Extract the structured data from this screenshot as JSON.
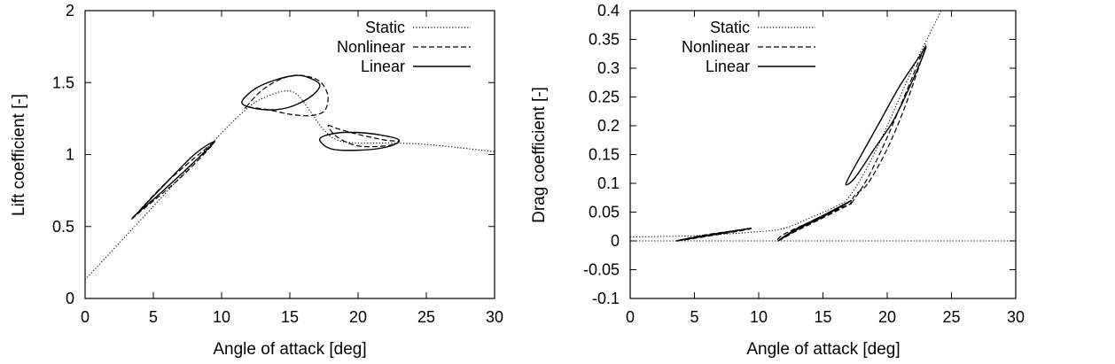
{
  "chart_data": [
    {
      "id": "lift",
      "type": "line",
      "title": "",
      "xlabel": "Angle of attack [deg]",
      "ylabel": "Lift coefficient [-]",
      "xlim": [
        0,
        30
      ],
      "ylim": [
        0,
        2
      ],
      "xticks": [
        0,
        5,
        10,
        15,
        20,
        25,
        30
      ],
      "yticks": [
        0,
        0.5,
        1,
        1.5,
        2
      ],
      "ytick_labels": [
        "0",
        "0.5",
        "1",
        "1.5",
        "2"
      ],
      "grid": false,
      "legend_position": "top-right",
      "series": [
        {
          "name": "Static",
          "style": "dotted",
          "x": [
            0,
            5,
            10,
            12,
            13,
            14.5,
            15.5,
            16.5,
            17.5,
            18.5,
            20,
            22,
            25,
            30
          ],
          "y": [
            0.13,
            0.64,
            1.15,
            1.33,
            1.39,
            1.44,
            1.42,
            1.3,
            1.17,
            1.1,
            1.08,
            1.08,
            1.07,
            1.02
          ]
        },
        {
          "name": "Nonlinear",
          "style": "dashed",
          "loops": [
            {
              "x": [
                3.6,
                6,
                9.4,
                7,
                4,
                3.6
              ],
              "y": [
                0.57,
                0.81,
                1.08,
                0.84,
                0.6,
                0.57
              ]
            },
            {
              "x": [
                11.8,
                13,
                14.5,
                15.8,
                17,
                17.6,
                17.8,
                17.5,
                16.5,
                15,
                13.5,
                12,
                11.8
              ],
              "y": [
                1.33,
                1.45,
                1.53,
                1.55,
                1.52,
                1.46,
                1.38,
                1.3,
                1.27,
                1.28,
                1.31,
                1.33,
                1.33
              ]
            },
            {
              "x": [
                17.8,
                18.5,
                20,
                22,
                23,
                22,
                20,
                18.5,
                17.8
              ],
              "y": [
                1.2,
                1.18,
                1.14,
                1.1,
                1.09,
                1.06,
                1.06,
                1.12,
                1.2
              ]
            }
          ]
        },
        {
          "name": "Linear",
          "style": "solid",
          "loops": [
            {
              "x": [
                3.6,
                5.5,
                8,
                9.5,
                8,
                5.5,
                3.8,
                3.6
              ],
              "y": [
                0.57,
                0.76,
                1.0,
                1.09,
                0.95,
                0.73,
                0.59,
                0.57
              ]
            },
            {
              "x": [
                11.5,
                12.5,
                14,
                15.5,
                16.5,
                17.2,
                16.5,
                15,
                13.5,
                12,
                11.5
              ],
              "y": [
                1.37,
                1.46,
                1.52,
                1.55,
                1.53,
                1.48,
                1.4,
                1.33,
                1.31,
                1.33,
                1.37
              ]
            },
            {
              "x": [
                17.2,
                18.5,
                20.5,
                22.5,
                23,
                22,
                20,
                18,
                17.2
              ],
              "y": [
                1.11,
                1.15,
                1.15,
                1.12,
                1.09,
                1.05,
                1.03,
                1.04,
                1.11
              ]
            }
          ]
        }
      ]
    },
    {
      "id": "drag",
      "type": "line",
      "title": "",
      "xlabel": "Angle of attack [deg]",
      "ylabel": "Drag coefficient [-]",
      "xlim": [
        0,
        30
      ],
      "ylim": [
        -0.1,
        0.4
      ],
      "xticks": [
        0,
        5,
        10,
        15,
        20,
        25,
        30
      ],
      "yticks": [
        -0.1,
        -0.05,
        0,
        0.05,
        0.1,
        0.15,
        0.2,
        0.25,
        0.3,
        0.35,
        0.4
      ],
      "ytick_labels": [
        "-0.1",
        "-0.05",
        "0",
        "0.05",
        "0.1",
        "0.15",
        "0.2",
        "0.25",
        "0.3",
        "0.35",
        "0.4"
      ],
      "grid": false,
      "legend_position": "top-left",
      "zero_line": true,
      "series": [
        {
          "name": "Static",
          "style": "dotted",
          "x": [
            0,
            5,
            10,
            12,
            14,
            16,
            17,
            18.5,
            20,
            22,
            24.2
          ],
          "y": [
            0.007,
            0.009,
            0.016,
            0.022,
            0.04,
            0.06,
            0.075,
            0.13,
            0.2,
            0.3,
            0.4
          ]
        },
        {
          "name": "Nonlinear",
          "style": "dashed",
          "loops": [
            {
              "x": [
                3.6,
                6,
                9.4,
                6,
                3.6
              ],
              "y": [
                0.0,
                0.008,
                0.021,
                0.011,
                0.0
              ]
            },
            {
              "x": [
                11.5,
                13,
                15,
                17.2,
                14.5,
                12,
                11.5
              ],
              "y": [
                0.0,
                0.018,
                0.04,
                0.065,
                0.038,
                0.012,
                0.0
              ]
            },
            {
              "x": [
                17.2,
                18.5,
                20,
                21.5,
                23,
                21.5,
                20,
                18.5,
                17.5,
                17.2
              ],
              "y": [
                0.065,
                0.11,
                0.18,
                0.26,
                0.34,
                0.24,
                0.16,
                0.1,
                0.08,
                0.065
              ]
            }
          ]
        },
        {
          "name": "Linear",
          "style": "solid",
          "loops": [
            {
              "x": [
                3.6,
                6,
                9.4,
                6,
                3.6
              ],
              "y": [
                0.0,
                0.009,
                0.022,
                0.01,
                0.0
              ]
            },
            {
              "x": [
                11.5,
                13,
                15,
                17.2,
                15,
                13,
                11.5
              ],
              "y": [
                0.0,
                0.02,
                0.042,
                0.07,
                0.044,
                0.022,
                0.0
              ]
            },
            {
              "x": [
                16.8,
                18,
                19.5,
                21,
                22.5,
                23,
                22,
                20.5,
                19,
                17.5,
                16.8
              ],
              "y": [
                0.1,
                0.15,
                0.21,
                0.27,
                0.32,
                0.335,
                0.28,
                0.21,
                0.16,
                0.11,
                0.1
              ]
            }
          ]
        }
      ]
    }
  ]
}
